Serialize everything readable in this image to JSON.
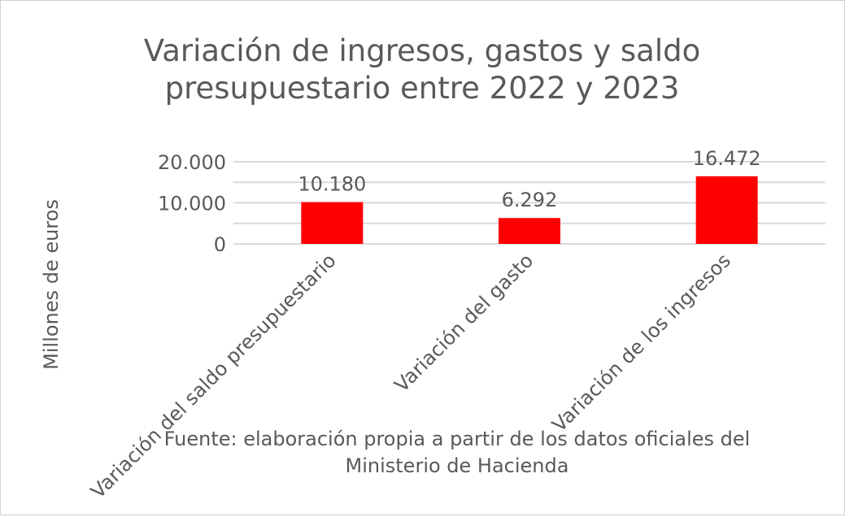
{
  "chart_data": {
    "type": "bar",
    "title": [
      "Variación de ingresos, gastos y saldo",
      "presupuestario entre 2022 y 2023"
    ],
    "ylabel": "Millones de euros",
    "xlabel": "",
    "categories": [
      "Variación del saldo presupuestario",
      "Variación del gasto",
      "Variación de los ingresos"
    ],
    "values": [
      10180,
      6292,
      16472
    ],
    "data_labels": [
      "10.180",
      "6.292",
      "16.472"
    ],
    "ylim": [
      0,
      20000
    ],
    "yticks": [
      0,
      10000,
      20000
    ],
    "ytick_labels": [
      "0",
      "10.000",
      "20.000"
    ],
    "minor_gridlines": [
      5000,
      15000
    ],
    "grid": true,
    "bar_color": "#ff0000",
    "source_note": [
      "Fuente: elaboración propia a partir de los datos oficiales del",
      "Ministerio de Hacienda"
    ]
  }
}
